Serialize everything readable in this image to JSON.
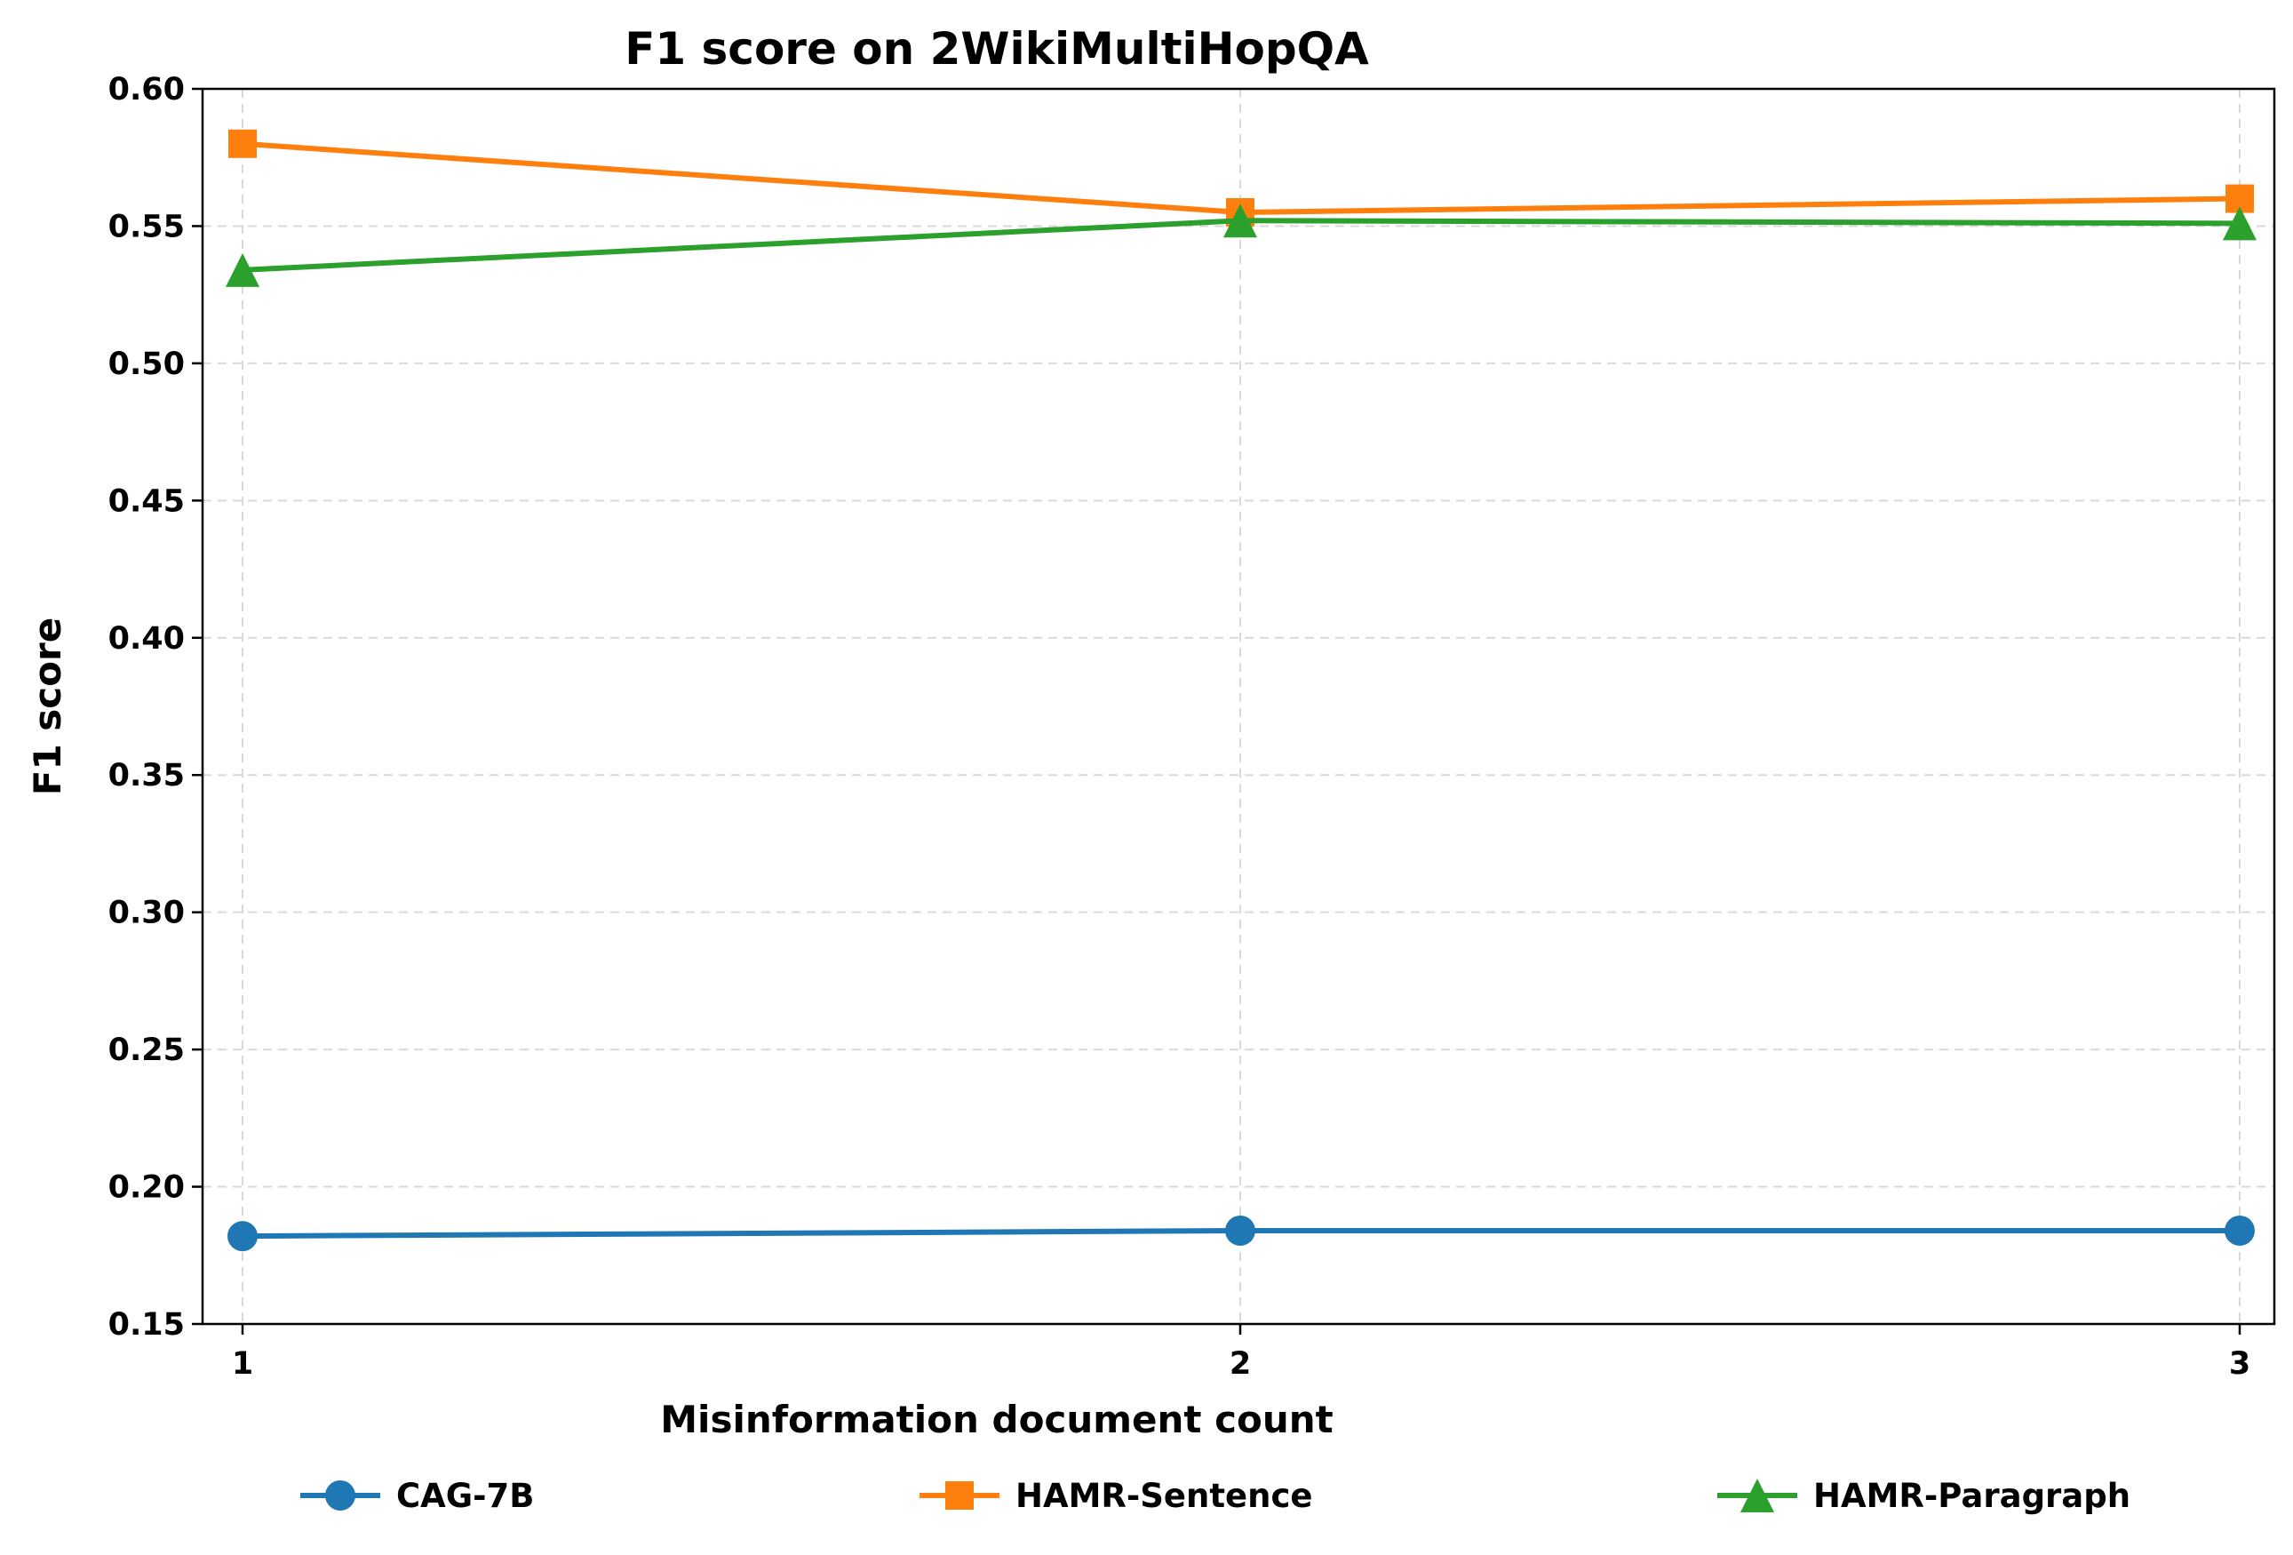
{
  "chart_data": {
    "type": "line",
    "title": "F1 score on 2WikiMultiHopQA",
    "xlabel": "Misinformation document count",
    "ylabel": "F1 score",
    "x": [
      1,
      2,
      3
    ],
    "x_tick_labels": [
      "1",
      "2",
      "3"
    ],
    "ylim": [
      0.15,
      0.6
    ],
    "y_ticks": [
      0.15,
      0.2,
      0.25,
      0.3,
      0.35,
      0.4,
      0.45,
      0.5,
      0.55,
      0.6
    ],
    "y_tick_labels": [
      "0.15",
      "0.20",
      "0.25",
      "0.30",
      "0.35",
      "0.40",
      "0.45",
      "0.50",
      "0.55",
      "0.60"
    ],
    "grid": true,
    "legend_position": "bottom",
    "series": [
      {
        "name": "CAG-7B",
        "values": [
          0.182,
          0.184,
          0.184
        ],
        "color": "#1f77b4",
        "marker": "circle"
      },
      {
        "name": "HAMR-Sentence",
        "values": [
          0.58,
          0.555,
          0.56
        ],
        "color": "#ff7f0e",
        "marker": "square"
      },
      {
        "name": "HAMR-Paragraph",
        "values": [
          0.534,
          0.552,
          0.551
        ],
        "color": "#2ca02c",
        "marker": "triangle"
      }
    ]
  }
}
